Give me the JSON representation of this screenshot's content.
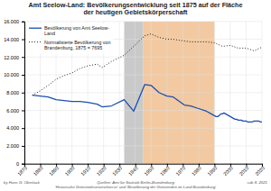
{
  "chart_data": {
    "type": "line",
    "title": "Amt Seelow-Land: Bevölkerungsentwicklung seit 1875 auf der Fläche\nder heutigen Gebietskörperschaft",
    "xlim": [
      1870,
      2020
    ],
    "ylim": [
      0,
      16000
    ],
    "xticks": [
      1870,
      1880,
      1890,
      1900,
      1910,
      1920,
      1930,
      1940,
      1950,
      1960,
      1970,
      1980,
      1990,
      2000,
      2010,
      2020
    ],
    "yticks": [
      0,
      {
        "value": 2000,
        "label": "2.000"
      },
      {
        "value": 4000,
        "label": "4.000"
      },
      {
        "value": 6000,
        "label": "6.000"
      },
      {
        "value": 8000,
        "label": "8.000"
      },
      {
        "value": 10000,
        "label": "10.000"
      },
      {
        "value": 12000,
        "label": "12.000"
      },
      {
        "value": 14000,
        "label": "14.000"
      },
      {
        "value": 16000,
        "label": "16.000"
      }
    ],
    "grid": true,
    "legend": "upper left",
    "regions": [
      {
        "start": 1933,
        "end": 1945,
        "color": "#c0c0c0"
      },
      {
        "start": 1945,
        "end": 1990,
        "color": "#f0c090"
      }
    ],
    "series": [
      {
        "name": "Bevölkerung von Amt Seelow-\nLand",
        "color": "#1a4fb0",
        "line_style": "solid",
        "x": [
          1875,
          1880,
          1885,
          1890,
          1895,
          1900,
          1905,
          1910,
          1916,
          1919,
          1925,
          1933,
          1939,
          1946,
          1950,
          1955,
          1960,
          1964,
          1971,
          1975,
          1980,
          1985,
          1990,
          1991,
          1992,
          1993,
          1994,
          1995,
          1996,
          1997,
          1998,
          1999,
          2000,
          2001,
          2002,
          2003,
          2004,
          2005,
          2006,
          2007,
          2008,
          2009,
          2010,
          2011,
          2012,
          2013,
          2014,
          2015,
          2016,
          2017,
          2018,
          2019,
          2020
        ],
        "values": [
          7700,
          7600,
          7500,
          7200,
          7100,
          7000,
          7000,
          6900,
          6700,
          6400,
          6500,
          7200,
          5900,
          8900,
          8800,
          8000,
          7600,
          7500,
          6600,
          6500,
          6200,
          5900,
          5400,
          5300,
          5300,
          5400,
          5600,
          5600,
          5700,
          5600,
          5500,
          5400,
          5300,
          5200,
          5100,
          5000,
          5000,
          4900,
          4900,
          4900,
          4800,
          4800,
          4800,
          4700,
          4700,
          4700,
          4700,
          4800,
          4800,
          4800,
          4800,
          4700,
          4700
        ]
      },
      {
        "name": "Normalisierte Bevölkerung von\nBrandenburg, 1875 = 7695",
        "color": "#222222",
        "line_style": "dotted",
        "x": [
          1875,
          1880,
          1885,
          1890,
          1895,
          1900,
          1905,
          1910,
          1916,
          1919,
          1925,
          1933,
          1939,
          1946,
          1950,
          1955,
          1960,
          1964,
          1971,
          1975,
          1980,
          1985,
          1990,
          1995,
          2000,
          2005,
          2010,
          2015,
          2020
        ],
        "values": [
          7695,
          8200,
          8800,
          9500,
          9900,
          10200,
          10700,
          11000,
          11200,
          10800,
          11500,
          12200,
          13200,
          14400,
          14600,
          14200,
          14000,
          14000,
          13800,
          13700,
          13700,
          13700,
          13600,
          13200,
          13300,
          13000,
          13000,
          12700,
          13100
        ]
      }
    ],
    "annotations": [
      "by Hans G. Oberlack",
      "Quellen: Amt für Statistik Berlin-Brandenburg\n'Historische Gemeindeverzeichnisse' und 'Bevölkerung der Gemeinden im Land Brandenburg'",
      "säb 8. 2021"
    ]
  }
}
